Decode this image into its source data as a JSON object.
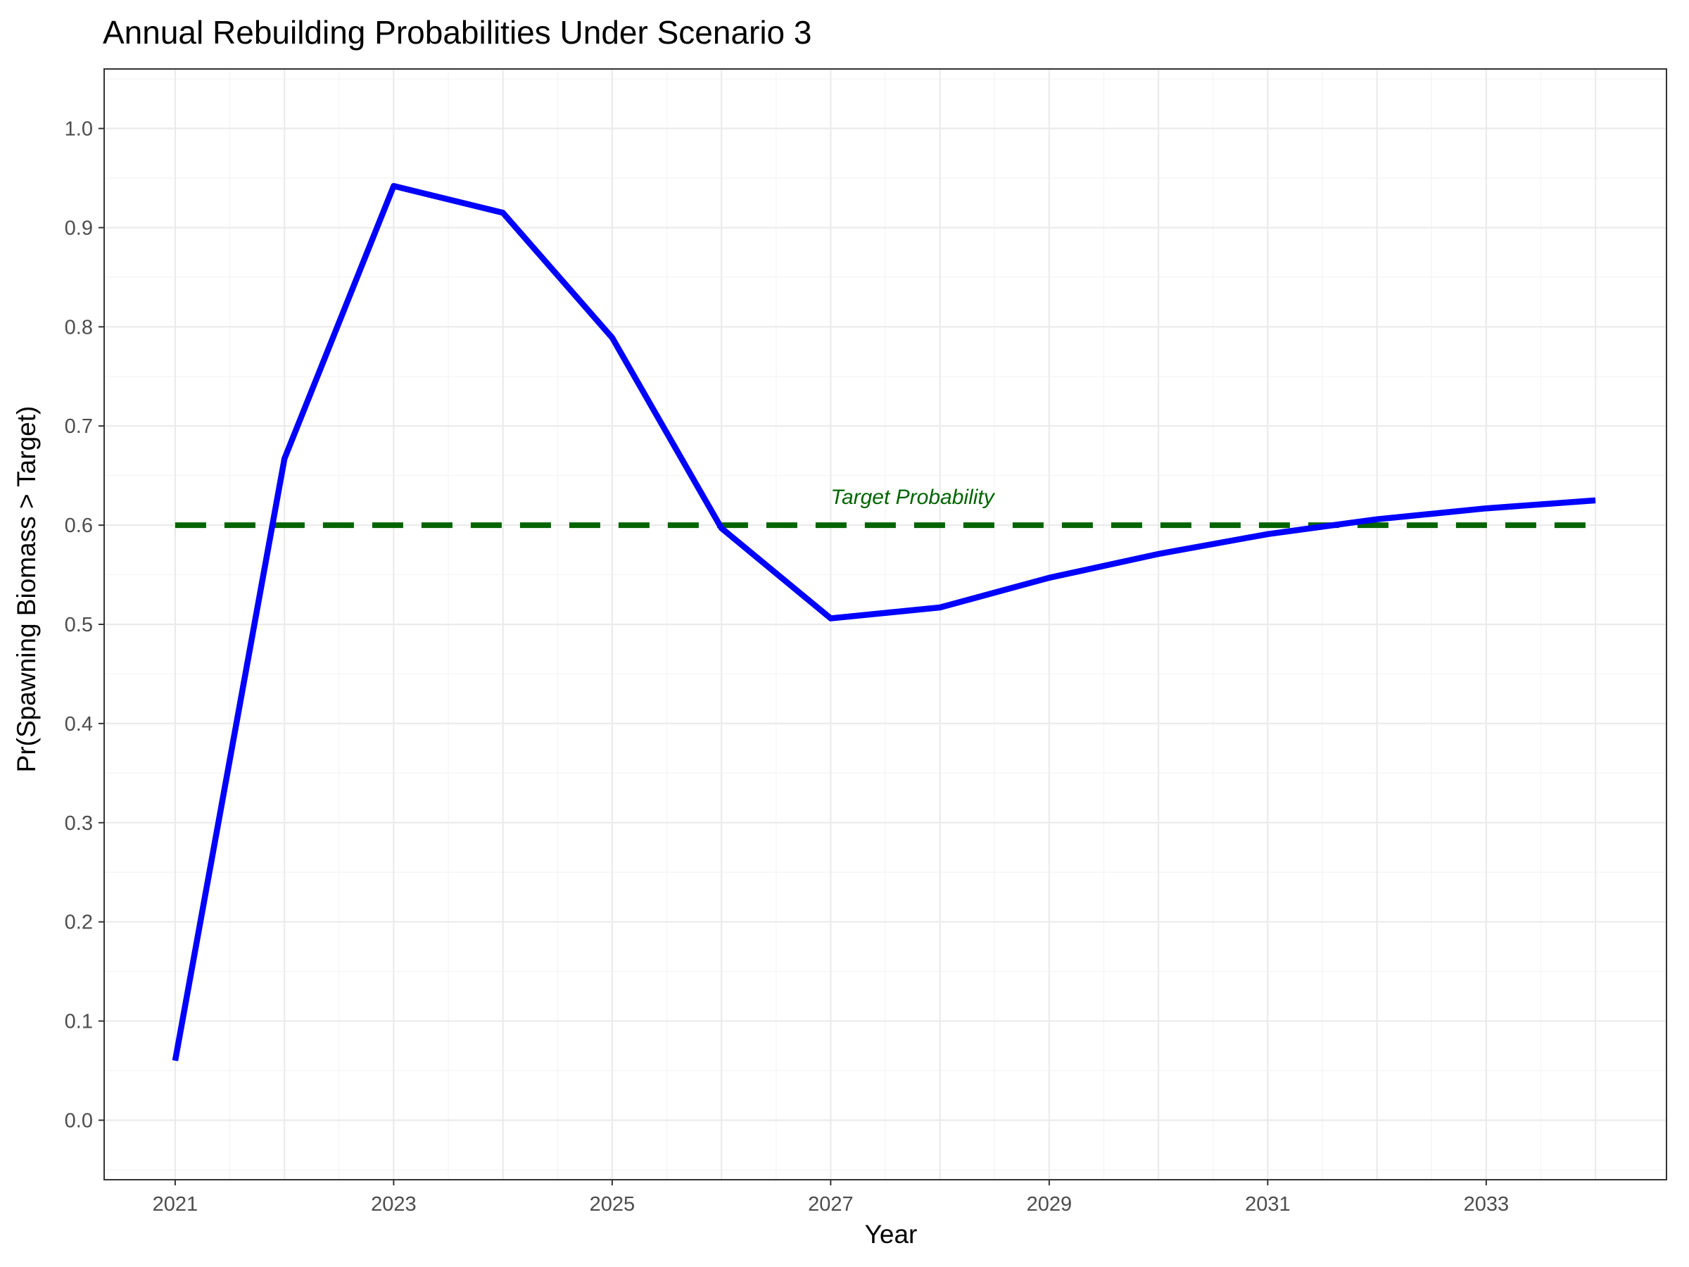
{
  "chart_data": {
    "type": "line",
    "title": "Annual Rebuilding Probabilities Under Scenario 3",
    "xlabel": "Year",
    "ylabel": "Pr(Spawning Biomass > Target)",
    "x": [
      2021,
      2022,
      2023,
      2024,
      2025,
      2026,
      2027,
      2028,
      2029,
      2030,
      2031,
      2032,
      2033,
      2034
    ],
    "series": [
      {
        "values": [
          0.06,
          0.667,
          0.942,
          0.915,
          0.789,
          0.597,
          0.506,
          0.517,
          0.547,
          0.571,
          0.591,
          0.606,
          0.617,
          0.625
        ],
        "color": "#0000ff"
      }
    ],
    "reference_line": {
      "y": 0.6,
      "style": "dashed",
      "color": "#006400",
      "label": "Target Probability",
      "label_x": 2027
    },
    "xlim": [
      2020.35,
      2034.65
    ],
    "ylim": [
      -0.06,
      1.06
    ],
    "x_ticks": [
      "2021",
      "2023",
      "2025",
      "2027",
      "2029",
      "2031",
      "2033"
    ],
    "y_ticks": [
      "0.0",
      "0.1",
      "0.2",
      "0.3",
      "0.4",
      "0.5",
      "0.6",
      "0.7",
      "0.8",
      "0.9",
      "1.0"
    ],
    "grid": true,
    "legend": "none"
  }
}
